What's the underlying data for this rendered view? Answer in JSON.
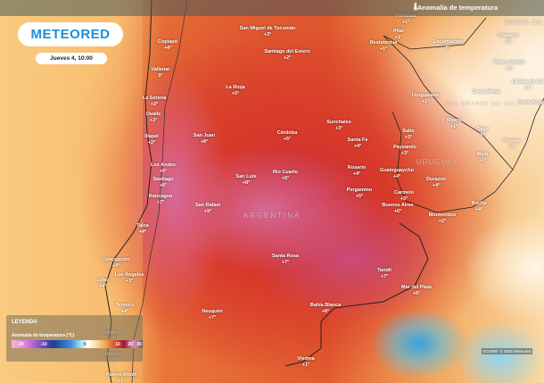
{
  "header": {
    "layer_title": "Anomalía de temperatura",
    "icon": "thermometer-icon"
  },
  "brand": {
    "logo": "METEORED",
    "color": "#1b8fd8"
  },
  "timestamp": "Jueves 4, 10:00",
  "countries": [
    "ARGENTINA",
    "URUGUAY",
    "RIO GRANDE DO SUL",
    "SANTA CA"
  ],
  "cities": [
    {
      "name": "Formosa",
      "value": "+1°"
    },
    {
      "name": "Pilar",
      "value": "+1°"
    },
    {
      "name": "Resistencia",
      "value": "+1°"
    },
    {
      "name": "Encarnación",
      "value": "0°"
    },
    {
      "name": "Chapecó",
      "value": "+1°"
    },
    {
      "name": "Passo Fundo",
      "value": "+1°"
    },
    {
      "name": "Caxias do Sul",
      "value": "+1°"
    },
    {
      "name": "Santa Maria",
      "value": ""
    },
    {
      "name": "Uruguaiana",
      "value": "+1°"
    },
    {
      "name": "Porto Alegre",
      "value": ""
    },
    {
      "name": "Rivera",
      "value": "+1°"
    },
    {
      "name": "Bagé",
      "value": "0°"
    },
    {
      "name": "Pelotas",
      "value": "+4°"
    },
    {
      "name": "Melo",
      "value": "+1°"
    },
    {
      "name": "Salto",
      "value": "+3°"
    },
    {
      "name": "Paysandú",
      "value": "+3°"
    },
    {
      "name": "Gualeguaychú",
      "value": "+4°"
    },
    {
      "name": "Durazno",
      "value": "+4°"
    },
    {
      "name": "Carmelo",
      "value": "+5°"
    },
    {
      "name": "Rocha",
      "value": "+4°"
    },
    {
      "name": "Montevideo",
      "value": "+2°"
    },
    {
      "name": "Buenos Aires",
      "value": "+6°"
    },
    {
      "name": "Pergamino",
      "value": "+5°"
    },
    {
      "name": "Rosario",
      "value": "+4°"
    },
    {
      "name": "Santa Fe",
      "value": "+4°"
    },
    {
      "name": "Sunchales",
      "value": "+3°"
    },
    {
      "name": "Córdoba",
      "value": "+5°"
    },
    {
      "name": "Río Cuarto",
      "value": "+5°"
    },
    {
      "name": "San Luis",
      "value": "+8°"
    },
    {
      "name": "San Juan",
      "value": "+8°"
    },
    {
      "name": "La Rioja",
      "value": "+5°"
    },
    {
      "name": "San Miguel de Tucumán",
      "value": "+3°"
    },
    {
      "name": "Santiago del Estero",
      "value": "+2°"
    },
    {
      "name": "Copiapó",
      "value": "+4°"
    },
    {
      "name": "Vallenar",
      "value": "0°"
    },
    {
      "name": "La Serena",
      "value": "+2°"
    },
    {
      "name": "Ovalle",
      "value": "+3°"
    },
    {
      "name": "Illapel",
      "value": "+2°"
    },
    {
      "name": "Los Andes",
      "value": "+6°"
    },
    {
      "name": "Santiago",
      "value": "+6°"
    },
    {
      "name": "Rancagua",
      "value": "+7°"
    },
    {
      "name": "San Rafael",
      "value": "+9°"
    },
    {
      "name": "Talca",
      "value": "+4°"
    },
    {
      "name": "Concepción",
      "value": "+4°"
    },
    {
      "name": "Los Ángeles",
      "value": "+3°"
    },
    {
      "name": "Lebu",
      "value": "+4°"
    },
    {
      "name": "Santa Rosa",
      "value": "+7°"
    },
    {
      "name": "Temuco",
      "value": "+4°"
    },
    {
      "name": "Neuquén",
      "value": "+7°"
    },
    {
      "name": "Tandil",
      "value": "+7°"
    },
    {
      "name": "Mar del Plata",
      "value": "+6°"
    },
    {
      "name": "Bahía Blanca",
      "value": "+8°"
    },
    {
      "name": "Viedma",
      "value": "+1°"
    },
    {
      "name": "Valdivia",
      "value": "+3°"
    },
    {
      "name": "Osorno",
      "value": "+3°"
    },
    {
      "name": "Puerto Montt",
      "value": "+1°"
    }
  ],
  "legend": {
    "title": "LEYENDA",
    "subtitle": "Anomalía de temperatura (°C)",
    "ticks": [
      "-20",
      "-10",
      "0",
      "10",
      "20",
      "30"
    ]
  },
  "credit": "ECMWF © 2025 Meteored"
}
